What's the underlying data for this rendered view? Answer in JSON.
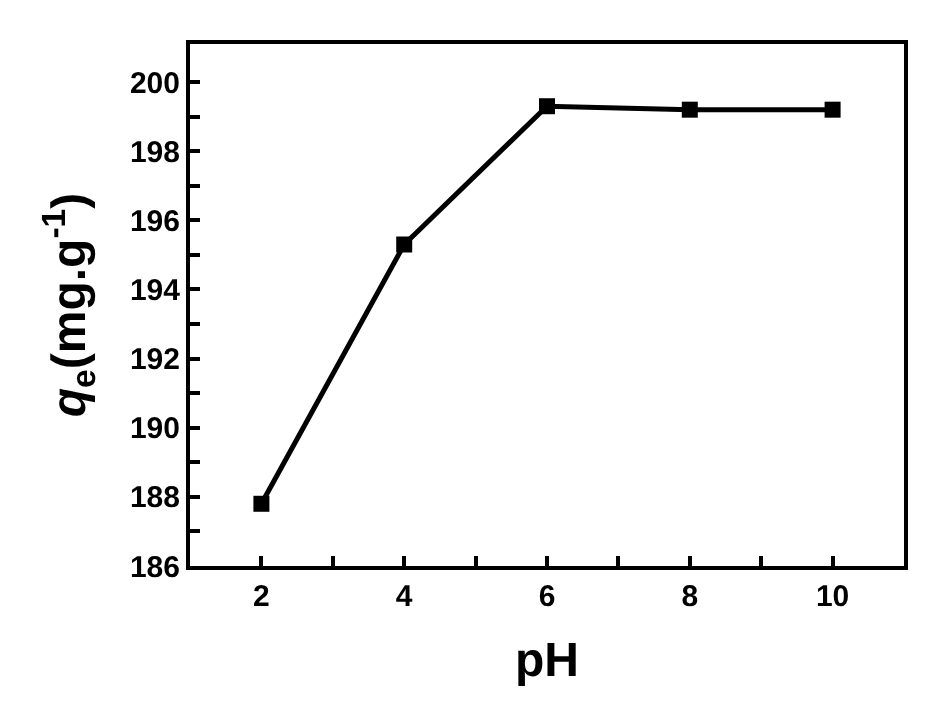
{
  "chart_data": {
    "type": "line",
    "xlabel": "pH",
    "ylabel": "q$_{e}$(mg.g$^{-1}$)",
    "x": [
      2,
      4,
      6,
      8,
      10
    ],
    "series": [
      {
        "color": "#000000",
        "values": [
          187.8,
          195.3,
          199.3,
          199.2,
          199.2
        ]
      }
    ],
    "xlim": [
      1,
      11
    ],
    "ylim": [
      186,
      201.1
    ],
    "xticks": [
      2,
      {
        "value": 3,
        "label": null
      },
      4,
      {
        "value": 5,
        "label": null
      },
      6,
      {
        "value": 7,
        "label": null
      },
      8,
      {
        "value": 9,
        "label": null
      },
      10
    ],
    "yticks": [
      186,
      {
        "value": 187,
        "label": null
      },
      188,
      {
        "value": 189,
        "label": null
      },
      190,
      {
        "value": 191,
        "label": null
      },
      192,
      {
        "value": 193,
        "label": null
      },
      194,
      {
        "value": 195,
        "label": null
      },
      196,
      {
        "value": 197,
        "label": null
      },
      198,
      {
        "value": 199,
        "label": null
      },
      200
    ],
    "marker": "square",
    "line_style": "solid"
  }
}
